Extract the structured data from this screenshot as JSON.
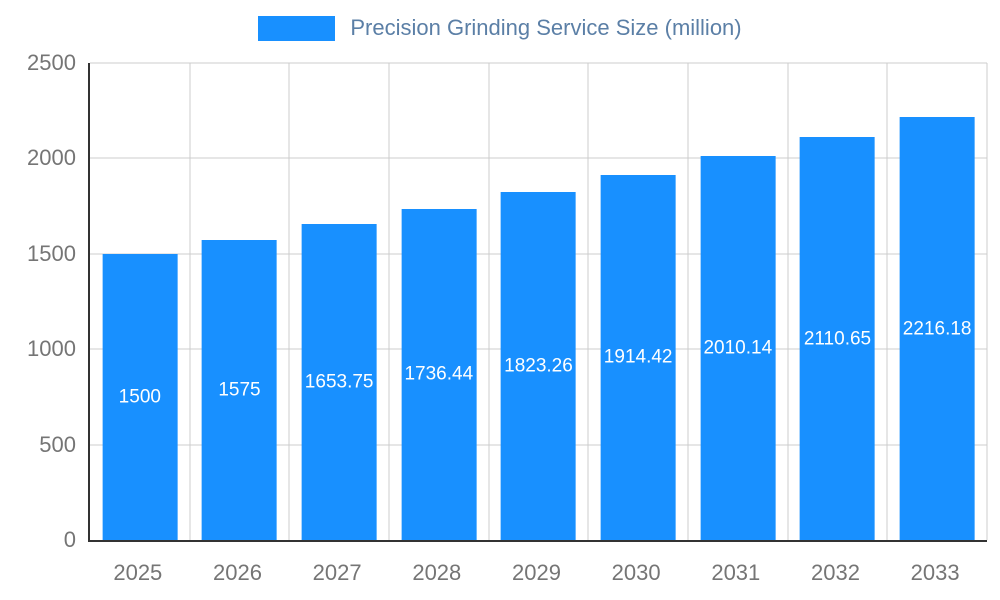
{
  "legend": {
    "swatch_color": "#1890FF",
    "label": "Precision Grinding Service Size (million)"
  },
  "colors": {
    "bar": "#1890FF",
    "bar_label": "#FFFFFF",
    "legend_text": "#5B7FA6",
    "axis_text": "#757575",
    "axis_line": "#333333",
    "grid": "#CCCCCC",
    "background": "#FFFFFF"
  },
  "chart_data": {
    "type": "bar",
    "title": "Precision Grinding Service Size (million)",
    "categories": [
      "2025",
      "2026",
      "2027",
      "2028",
      "2029",
      "2030",
      "2031",
      "2032",
      "2033"
    ],
    "values": [
      1500,
      1575,
      1653.75,
      1736.44,
      1823.26,
      1914.42,
      2010.14,
      2110.65,
      2216.18
    ],
    "value_labels": [
      "1500",
      "1575",
      "1653.75",
      "1736.44",
      "1823.26",
      "1914.42",
      "2010.14",
      "2110.65",
      "2216.18"
    ],
    "xlabel": "",
    "ylabel": "",
    "ylim": [
      0,
      2500
    ],
    "yticks": [
      0,
      500,
      1000,
      1500,
      2000,
      2500
    ],
    "grid": true,
    "legend_position": "top-center",
    "bar_value_label_position": "inside-middle"
  }
}
